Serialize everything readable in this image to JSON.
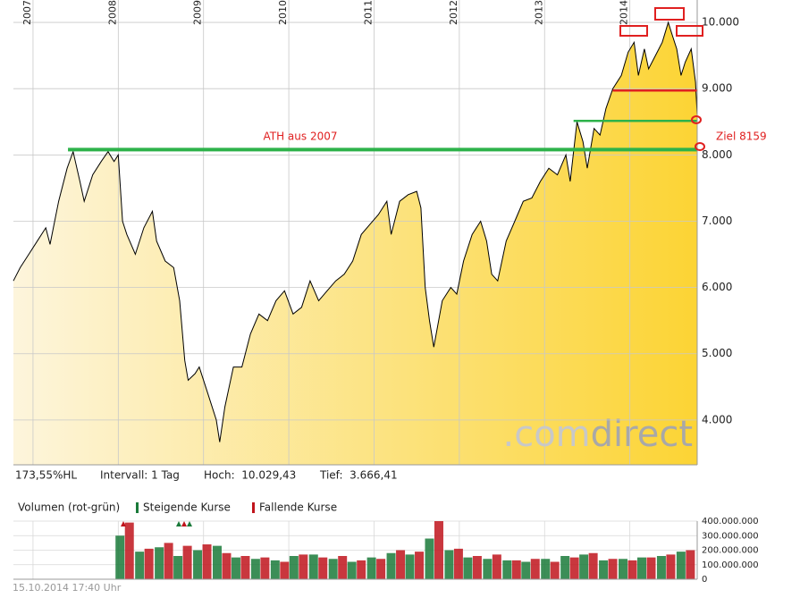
{
  "chart_data": [
    {
      "type": "area",
      "x": [
        2006.77,
        2006.85,
        2006.95,
        2007.05,
        2007.15,
        2007.2,
        2007.3,
        2007.4,
        2007.47,
        2007.55,
        2007.6,
        2007.7,
        2007.8,
        2007.88,
        2007.95,
        2008.0,
        2008.05,
        2008.1,
        2008.2,
        2008.3,
        2008.4,
        2008.45,
        2008.55,
        2008.65,
        2008.72,
        2008.78,
        2008.82,
        2008.9,
        2008.95,
        2009.05,
        2009.15,
        2009.19,
        2009.25,
        2009.35,
        2009.45,
        2009.55,
        2009.65,
        2009.75,
        2009.85,
        2009.95,
        2010.05,
        2010.15,
        2010.25,
        2010.35,
        2010.45,
        2010.55,
        2010.65,
        2010.75,
        2010.85,
        2010.95,
        2011.05,
        2011.15,
        2011.2,
        2011.3,
        2011.4,
        2011.5,
        2011.55,
        2011.6,
        2011.65,
        2011.7,
        2011.8,
        2011.9,
        2011.97,
        2012.05,
        2012.15,
        2012.25,
        2012.32,
        2012.38,
        2012.45,
        2012.55,
        2012.65,
        2012.75,
        2012.85,
        2012.95,
        2013.05,
        2013.15,
        2013.25,
        2013.3,
        2013.38,
        2013.45,
        2013.5,
        2013.58,
        2013.65,
        2013.72,
        2013.8,
        2013.9,
        2013.98,
        2014.05,
        2014.1,
        2014.17,
        2014.22,
        2014.3,
        2014.38,
        2014.45,
        2014.5,
        2014.55,
        2014.6,
        2014.65,
        2014.72,
        2014.77,
        2014.79
      ],
      "values": [
        6100,
        6300,
        6500,
        6700,
        6900,
        6650,
        7300,
        7800,
        8050,
        7600,
        7300,
        7700,
        7900,
        8050,
        7900,
        8000,
        7000,
        6800,
        6500,
        6900,
        7150,
        6700,
        6400,
        6300,
        5800,
        4900,
        4600,
        4700,
        4800,
        4400,
        4000,
        3666,
        4200,
        4800,
        4800,
        5300,
        5600,
        5500,
        5800,
        5950,
        5600,
        5700,
        6100,
        5800,
        5950,
        6100,
        6200,
        6400,
        6800,
        6950,
        7100,
        7300,
        6800,
        7300,
        7400,
        7450,
        7200,
        6000,
        5500,
        5100,
        5800,
        6000,
        5900,
        6400,
        6800,
        7000,
        6700,
        6200,
        6100,
        6700,
        7000,
        7300,
        7350,
        7600,
        7800,
        7700,
        8000,
        7600,
        8500,
        8200,
        7800,
        8400,
        8300,
        8700,
        9000,
        9200,
        9550,
        9700,
        9200,
        9600,
        9300,
        9500,
        9700,
        10000,
        9800,
        9600,
        9200,
        9400,
        9600,
        9100,
        8600
      ],
      "color": "#000000",
      "fill": [
        "#fdf5dc",
        "#fcd434"
      ],
      "xlim": [
        2006.77,
        2014.79
      ],
      "ylim": [
        3324,
        10338
      ],
      "xticks": [
        2007,
        2008,
        2009,
        2010,
        2011,
        2012,
        2013,
        2014
      ],
      "yticks": [
        {
          "value": 4000,
          "label": "4.000"
        },
        {
          "value": 5000,
          "label": "5.000"
        },
        {
          "value": 6000,
          "label": "6.000"
        },
        {
          "value": 7000,
          "label": "7.000"
        },
        {
          "value": 8000,
          "label": "8.000"
        },
        {
          "value": 9000,
          "label": "9.000"
        },
        {
          "value": 10000,
          "label": "10.000"
        }
      ],
      "grid": true,
      "hlines": [
        {
          "value": 8081,
          "x": [
            2007.41,
            2014.79
          ],
          "color": "#2db24a"
        },
        {
          "value": 8514,
          "x": [
            2013.34,
            2014.79
          ],
          "color": "#2db24a"
        },
        {
          "value": 8973,
          "x": [
            2013.8,
            2014.79
          ],
          "color": "#e02020"
        }
      ],
      "annotations": [
        "ATH aus 2007",
        "Ziel 8159"
      ],
      "watermark": [
        ".com",
        "direct"
      ],
      "stats": [
        "173,55%HL",
        "Intervall: 1 Tag",
        "Hoch:  10.029,43",
        "Tief:  3.666,41"
      ]
    },
    {
      "type": "bar",
      "title": "Volumen (rot-grün)",
      "xlim": [
        2006.77,
        2014.79
      ],
      "ylim": [
        0,
        400000000
      ],
      "yticks": [
        0,
        {
          "value": 100000000,
          "label": "100.000.000"
        },
        {
          "value": 200000000,
          "label": "200.000.000"
        },
        {
          "value": 300000000,
          "label": "300.000.000"
        },
        {
          "value": 400000000,
          "label": "400.000.000"
        }
      ],
      "series": [
        {
          "name": "Steigende Kurse",
          "color": "#1a7a3a",
          "x": [
            2008.02,
            2008.25,
            2008.48,
            2008.7,
            2008.93,
            2009.16,
            2009.38,
            2009.61,
            2009.84,
            2010.06,
            2010.29,
            2010.52,
            2010.74,
            2010.97,
            2011.2,
            2011.42,
            2011.65,
            2011.88,
            2012.1,
            2012.33,
            2012.56,
            2012.78,
            2013.01,
            2013.24,
            2013.46,
            2013.69,
            2013.92,
            2014.14,
            2014.37,
            2014.6
          ],
          "values": [
            300000000,
            190000000,
            220000000,
            160000000,
            200000000,
            230000000,
            150000000,
            140000000,
            130000000,
            160000000,
            170000000,
            140000000,
            120000000,
            150000000,
            180000000,
            170000000,
            280000000,
            200000000,
            150000000,
            140000000,
            130000000,
            120000000,
            140000000,
            160000000,
            170000000,
            130000000,
            140000000,
            150000000,
            160000000,
            190000000
          ]
        },
        {
          "name": "Fallende Kurse",
          "color": "#c0141c",
          "x": [
            2008.13,
            2008.36,
            2008.59,
            2008.81,
            2009.04,
            2009.27,
            2009.49,
            2009.72,
            2009.95,
            2010.17,
            2010.4,
            2010.63,
            2010.85,
            2011.08,
            2011.31,
            2011.53,
            2011.76,
            2011.99,
            2012.21,
            2012.44,
            2012.67,
            2012.89,
            2013.12,
            2013.35,
            2013.57,
            2013.8,
            2014.03,
            2014.25,
            2014.48,
            2014.71
          ],
          "values": [
            390000000,
            210000000,
            250000000,
            230000000,
            240000000,
            180000000,
            160000000,
            150000000,
            120000000,
            170000000,
            150000000,
            160000000,
            130000000,
            140000000,
            200000000,
            190000000,
            400000000,
            210000000,
            160000000,
            170000000,
            130000000,
            140000000,
            120000000,
            150000000,
            180000000,
            140000000,
            130000000,
            150000000,
            170000000,
            200000000
          ]
        }
      ]
    }
  ],
  "footer": "15.10.2014 17:40 Uhr"
}
